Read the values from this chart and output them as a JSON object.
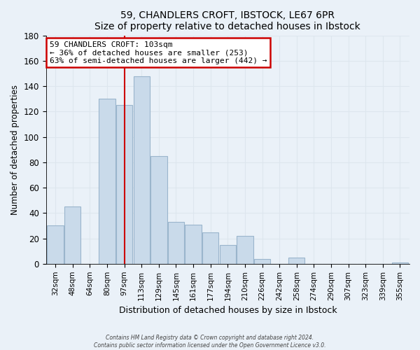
{
  "title": "59, CHANDLERS CROFT, IBSTOCK, LE67 6PR",
  "subtitle": "Size of property relative to detached houses in Ibstock",
  "xlabel": "Distribution of detached houses by size in Ibstock",
  "ylabel": "Number of detached properties",
  "bar_labels": [
    "32sqm",
    "48sqm",
    "64sqm",
    "80sqm",
    "97sqm",
    "113sqm",
    "129sqm",
    "145sqm",
    "161sqm",
    "177sqm",
    "194sqm",
    "210sqm",
    "226sqm",
    "242sqm",
    "258sqm",
    "274sqm",
    "290sqm",
    "307sqm",
    "323sqm",
    "339sqm",
    "355sqm"
  ],
  "bar_values": [
    30,
    45,
    0,
    130,
    125,
    148,
    85,
    33,
    31,
    25,
    15,
    22,
    4,
    0,
    5,
    0,
    0,
    0,
    0,
    0,
    1
  ],
  "bar_color": "#c9daea",
  "bar_edge_color": "#9ab5cc",
  "red_line_color": "#cc0000",
  "red_line_x": 4,
  "ylim": [
    0,
    180
  ],
  "yticks": [
    0,
    20,
    40,
    60,
    80,
    100,
    120,
    140,
    160,
    180
  ],
  "annotation_title": "59 CHANDLERS CROFT: 103sqm",
  "annotation_line1": "← 36% of detached houses are smaller (253)",
  "annotation_line2": "63% of semi-detached houses are larger (442) →",
  "annotation_box_color": "#ffffff",
  "annotation_box_edge": "#cc0000",
  "footer1": "Contains HM Land Registry data © Crown copyright and database right 2024.",
  "footer2": "Contains public sector information licensed under the Open Government Licence v3.0.",
  "grid_color": "#dde6ee",
  "background_color": "#eaf1f8",
  "plot_bg_color": "#eaf1f8"
}
